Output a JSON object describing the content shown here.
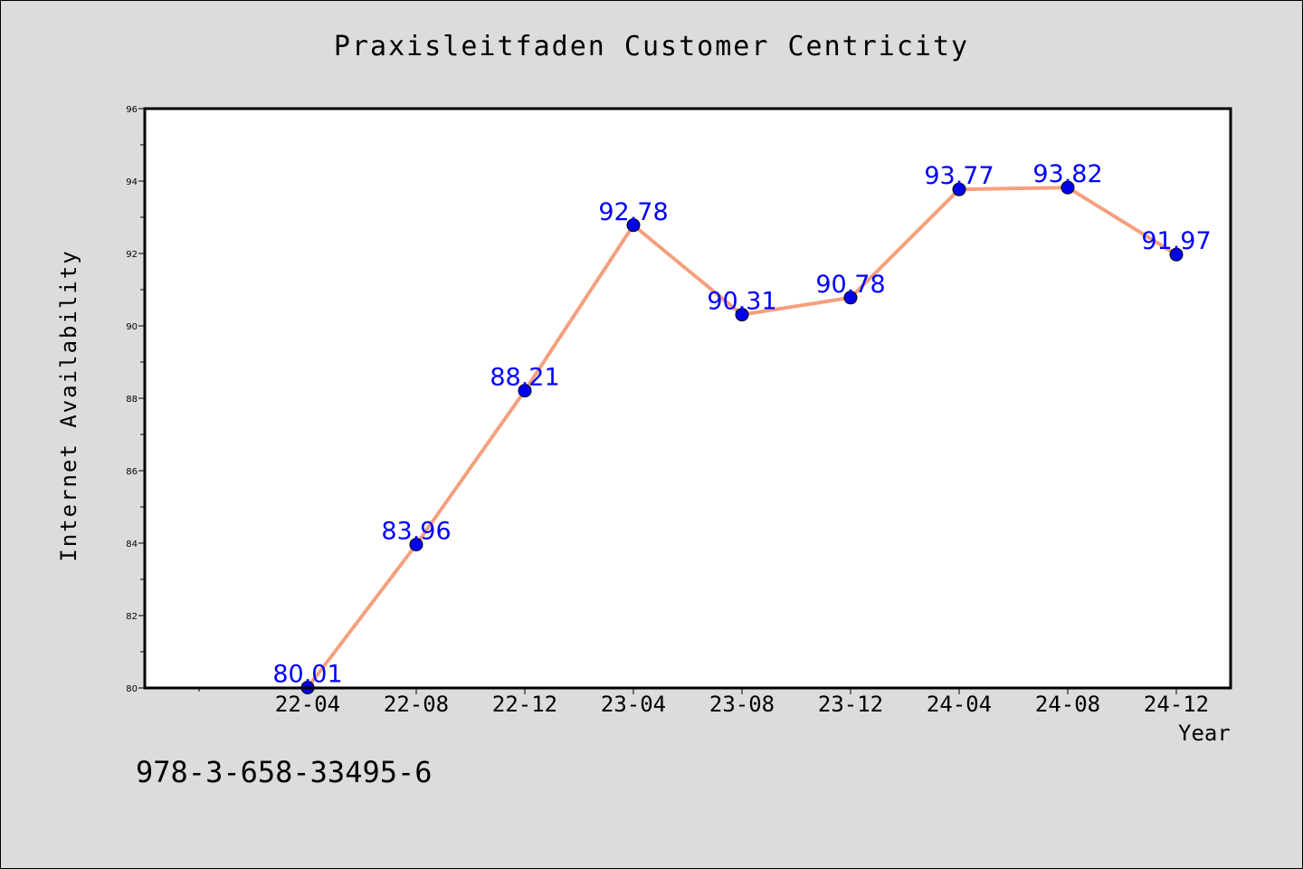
{
  "chart_data": {
    "type": "line",
    "title": "Praxisleitfaden Customer Centricity",
    "xlabel": "Year",
    "ylabel": "Internet Availability",
    "categories": [
      "22-04",
      "22-08",
      "22-12",
      "23-04",
      "23-08",
      "23-12",
      "24-04",
      "24-08",
      "24-12"
    ],
    "series": [
      {
        "values": [
          80.01,
          83.96,
          88.21,
          92.78,
          90.31,
          90.78,
          93.77,
          93.82,
          91.97
        ],
        "line_color": "#f4a07e",
        "marker_color": "#0000ee",
        "label_color": "#0000ff"
      }
    ],
    "data_labels": [
      "80.01",
      "83.96",
      "88.21",
      "92.78",
      "90.31",
      "90.78",
      "93.77",
      "93.82",
      "91.97"
    ],
    "ylim": [
      80,
      96
    ],
    "yticks": [
      80,
      82,
      84,
      86,
      88,
      90,
      92,
      94,
      96
    ],
    "grid": false,
    "legend": "none"
  },
  "footer_text": "978-3-658-33495-6"
}
